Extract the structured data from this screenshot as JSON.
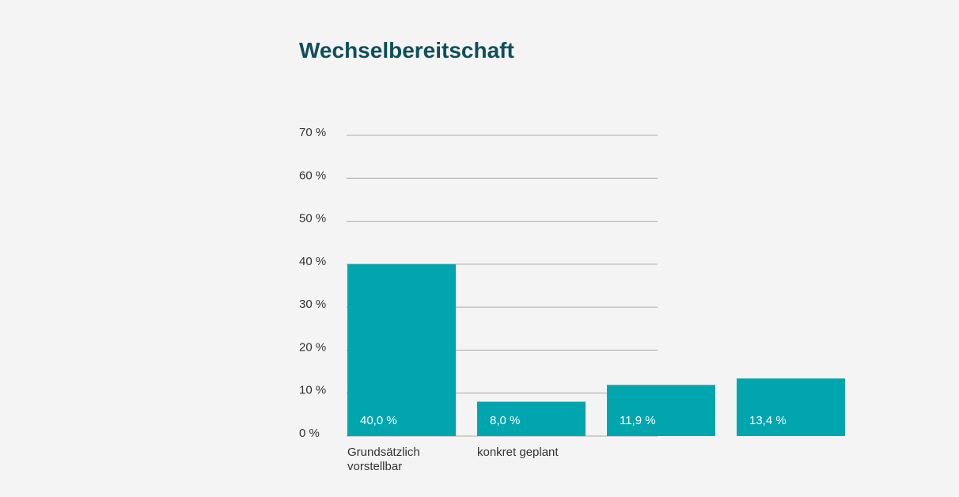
{
  "chart_data": {
    "type": "bar",
    "title": "Wechselbereitschaft",
    "categories": [
      [
        "Grundsätzlich",
        "vorstellbar"
      ],
      [
        "konkret geplant"
      ],
      [
        ""
      ],
      [
        ""
      ]
    ],
    "values": [
      40.0,
      8.0,
      11.9,
      13.4
    ],
    "value_labels": [
      "40,0 %",
      "8,0 %",
      "11,9 %",
      "13,4 %"
    ],
    "ylim": [
      0,
      70
    ],
    "yticks": [
      0,
      10,
      20,
      30,
      40,
      50,
      60,
      70
    ],
    "ytick_labels": [
      "0 %",
      "10 %",
      "20 %",
      "30 %",
      "40 %",
      "50 %",
      "60 %",
      "70 %"
    ],
    "grid": true,
    "colors": {
      "bar": "#00a5ae",
      "title": "#0e4f5c",
      "grid": "#aaaaaa",
      "value_label": "#ffffff"
    }
  }
}
